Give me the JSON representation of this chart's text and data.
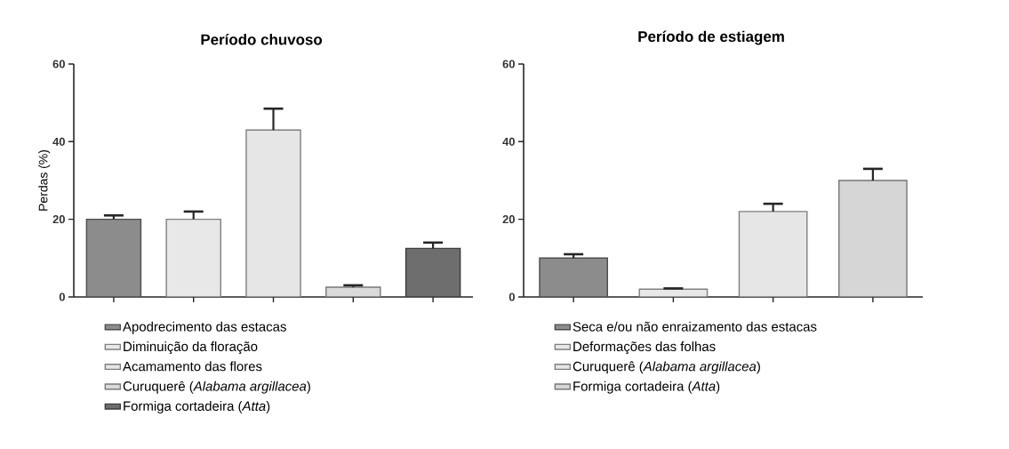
{
  "chart_data": [
    {
      "type": "bar",
      "title": "Período chuvoso",
      "ylabel": "Perdas (%)",
      "categories": [
        null,
        null,
        null,
        null,
        null
      ],
      "ylim": [
        0,
        60
      ],
      "yticks": [
        0,
        20,
        40,
        60
      ],
      "legend": "bottom",
      "series": [
        {
          "name": "Apodrecimento das estacas",
          "color": "#8c8c8c",
          "values": [
            20,
            null,
            null,
            null,
            null
          ],
          "errors": [
            1,
            null,
            null,
            null,
            null
          ]
        },
        {
          "name": "Diminuição da floração",
          "color": "#e8e8e8",
          "values": [
            null,
            20,
            null,
            null,
            null
          ],
          "errors": [
            null,
            2,
            null,
            null,
            null
          ]
        },
        {
          "name": "Acamamento das flores",
          "color": "#e6e6e6",
          "values": [
            null,
            null,
            43,
            null,
            null
          ],
          "errors": [
            null,
            null,
            5.5,
            null,
            null
          ]
        },
        {
          "name": "Curuquerê (*Alabama argillacea*)",
          "color": "#dadada",
          "values": [
            null,
            null,
            null,
            2.5,
            null
          ],
          "errors": [
            null,
            null,
            null,
            0.5,
            null
          ]
        },
        {
          "name": "Formiga cortadeira (*Atta*)",
          "color": "#6e6e6e",
          "values": [
            null,
            null,
            null,
            null,
            12.5
          ],
          "errors": [
            null,
            null,
            null,
            null,
            1.5
          ]
        }
      ]
    },
    {
      "type": "bar",
      "title": "Período de estiagem",
      "categories": [
        null,
        null,
        null,
        null
      ],
      "ylim": [
        0,
        60
      ],
      "yticks": [
        0,
        20,
        40,
        60
      ],
      "legend": "bottom",
      "series": [
        {
          "name": "Seca e/ou não enraizamento das estacas",
          "color": "#8c8c8c",
          "values": [
            10,
            null,
            null,
            null
          ],
          "errors": [
            1,
            null,
            null,
            null
          ]
        },
        {
          "name": "Deformações das folhas",
          "color": "#e8e8e8",
          "values": [
            null,
            2,
            null,
            null
          ],
          "errors": [
            null,
            0.2,
            null,
            null
          ]
        },
        {
          "name": "Curuquerê (*Alabama argillacea*)",
          "color": "#e6e6e6",
          "values": [
            null,
            null,
            22,
            null
          ],
          "errors": [
            null,
            null,
            2,
            null
          ]
        },
        {
          "name": "Formiga cortadeira (*Atta*)",
          "color": "#d6d6d6",
          "values": [
            null,
            null,
            null,
            30
          ],
          "errors": [
            null,
            null,
            null,
            3
          ]
        }
      ]
    }
  ]
}
